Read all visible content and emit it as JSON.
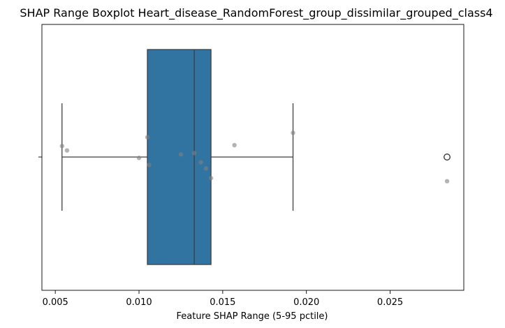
{
  "chart_data": {
    "type": "boxplot",
    "title": "SHAP Range Boxplot Heart_disease_RandomForest_group_dissimilar_grouped_class4",
    "xlabel": "Feature SHAP Range (5-95 pctile)",
    "ylabel": "",
    "xlim": [
      0.0042,
      0.0294
    ],
    "x_ticks": [
      0.005,
      0.01,
      0.015,
      0.02,
      0.025
    ],
    "x_tick_labels": [
      "0.005",
      "0.010",
      "0.015",
      "0.020",
      "0.025"
    ],
    "grid": false,
    "box": {
      "whisker_low": 0.0054,
      "q1": 0.0105,
      "median": 0.0133,
      "q3": 0.0143,
      "whisker_high": 0.0192,
      "outliers": [
        0.0284
      ],
      "color": "#3274a1"
    },
    "points": [
      {
        "x": 0.0054,
        "jitter": -0.25
      },
      {
        "x": 0.0057,
        "jitter": -0.15
      },
      {
        "x": 0.01,
        "jitter": 0.02
      },
      {
        "x": 0.0105,
        "jitter": -0.45
      },
      {
        "x": 0.0106,
        "jitter": 0.18
      },
      {
        "x": 0.0125,
        "jitter": -0.06
      },
      {
        "x": 0.0133,
        "jitter": -0.09
      },
      {
        "x": 0.0137,
        "jitter": 0.12
      },
      {
        "x": 0.014,
        "jitter": 0.26
      },
      {
        "x": 0.0143,
        "jitter": 0.48
      },
      {
        "x": 0.0157,
        "jitter": -0.27
      },
      {
        "x": 0.0192,
        "jitter": -0.55
      },
      {
        "x": 0.0284,
        "jitter": 0.55
      }
    ],
    "point_color": "#808080"
  }
}
